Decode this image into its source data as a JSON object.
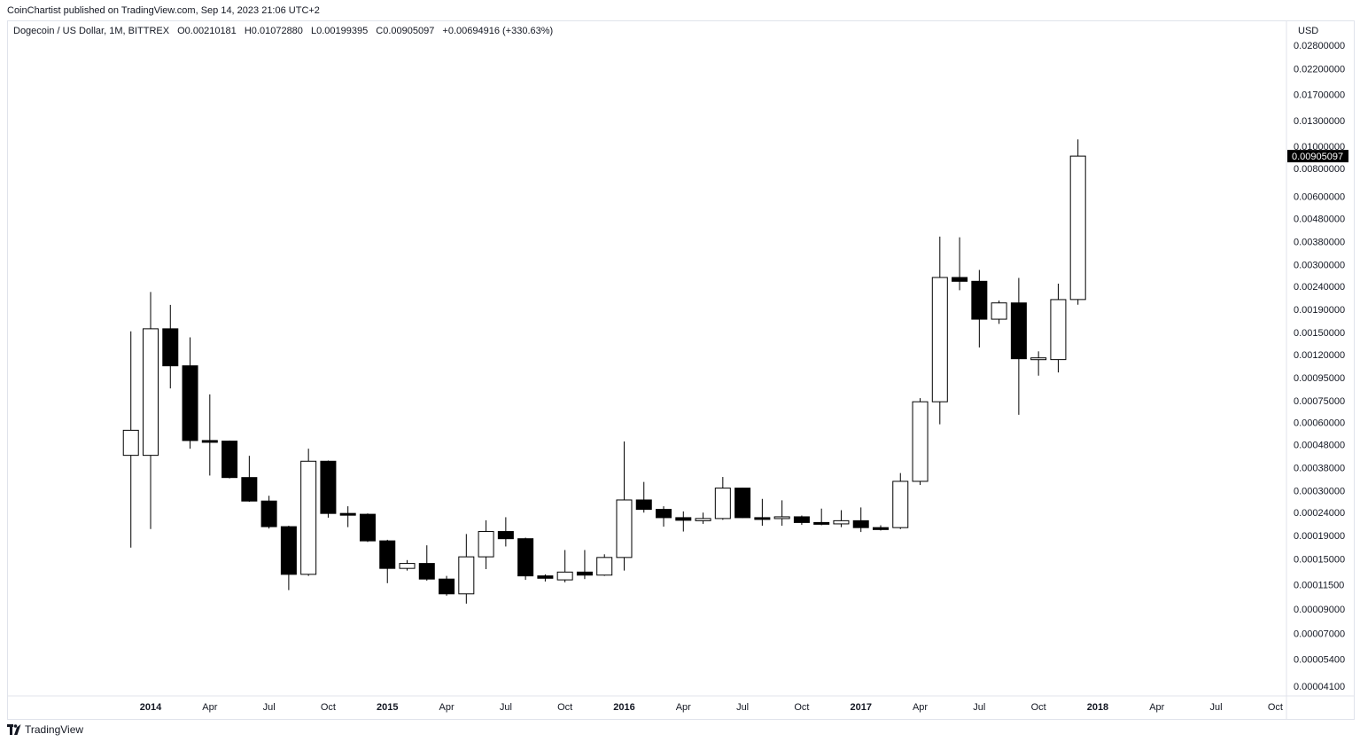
{
  "header": {
    "published": "CoinChartist published on TradingView.com, Sep 14, 2023 21:06 UTC+2"
  },
  "legend": {
    "symbol": "Dogecoin / US Dollar, 1M, BITTREX",
    "open": "O0.00210181",
    "high": "H0.01072880",
    "low": "L0.00199395",
    "close": "C0.00905097",
    "change": "+0.00694916 (+330.63%)"
  },
  "currency": "USD",
  "footer": {
    "brand": "TradingView",
    "logo_icon": "tradingview-logo-icon"
  },
  "colors": {
    "up_fill": "#ffffff",
    "down_fill": "#000000",
    "wick": "#000000",
    "last_price_bg": "#000000",
    "last_price_text": "#ffffff"
  },
  "chart_data": {
    "type": "candlestick",
    "scale": "log",
    "grid": false,
    "last_price_label": "0.00905097",
    "y_ticks": [
      "0.02800000",
      "0.02200000",
      "0.01700000",
      "0.01300000",
      "0.01000000",
      "0.00800000",
      "0.00600000",
      "0.00480000",
      "0.00380000",
      "0.00300000",
      "0.00240000",
      "0.00190000",
      "0.00150000",
      "0.00120000",
      "0.00095000",
      "0.00075000",
      "0.00060000",
      "0.00048000",
      "0.00038000",
      "0.00030000",
      "0.00024000",
      "0.00019000",
      "0.00015000",
      "0.00011500",
      "0.00009000",
      "0.00007000",
      "0.00005400",
      "0.00004100"
    ],
    "x_ticks": [
      {
        "label": "2014",
        "date": "2014-01",
        "bold": true
      },
      {
        "label": "Apr",
        "date": "2014-04",
        "bold": false
      },
      {
        "label": "Jul",
        "date": "2014-07",
        "bold": false
      },
      {
        "label": "Oct",
        "date": "2014-10",
        "bold": false
      },
      {
        "label": "2015",
        "date": "2015-01",
        "bold": true
      },
      {
        "label": "Apr",
        "date": "2015-04",
        "bold": false
      },
      {
        "label": "Jul",
        "date": "2015-07",
        "bold": false
      },
      {
        "label": "Oct",
        "date": "2015-10",
        "bold": false
      },
      {
        "label": "2016",
        "date": "2016-01",
        "bold": true
      },
      {
        "label": "Apr",
        "date": "2016-04",
        "bold": false
      },
      {
        "label": "Jul",
        "date": "2016-07",
        "bold": false
      },
      {
        "label": "Oct",
        "date": "2016-10",
        "bold": false
      },
      {
        "label": "2017",
        "date": "2017-01",
        "bold": true
      },
      {
        "label": "Apr",
        "date": "2017-04",
        "bold": false
      },
      {
        "label": "Jul",
        "date": "2017-07",
        "bold": false
      },
      {
        "label": "Oct",
        "date": "2017-10",
        "bold": false
      },
      {
        "label": "2018",
        "date": "2018-01",
        "bold": true
      },
      {
        "label": "Apr",
        "date": "2018-04",
        "bold": false
      },
      {
        "label": "Jul",
        "date": "2018-07",
        "bold": false
      },
      {
        "label": "Oct",
        "date": "2018-10",
        "bold": false
      }
    ],
    "candles": [
      {
        "date": "2013-12",
        "o": 0.00043,
        "h": 0.00152,
        "l": 0.000168,
        "c": 0.000555
      },
      {
        "date": "2014-01",
        "o": 0.00043,
        "h": 0.00227,
        "l": 0.000203,
        "c": 0.00156
      },
      {
        "date": "2014-02",
        "o": 0.00156,
        "h": 0.00199,
        "l": 0.00085,
        "c": 0.00107
      },
      {
        "date": "2014-03",
        "o": 0.00107,
        "h": 0.00143,
        "l": 0.00046,
        "c": 0.0005
      },
      {
        "date": "2014-04",
        "o": 0.0005,
        "h": 0.0008,
        "l": 0.00035,
        "c": 0.000497
      },
      {
        "date": "2014-05",
        "o": 0.000497,
        "h": 0.0005,
        "l": 0.00034,
        "c": 0.000343
      },
      {
        "date": "2014-06",
        "o": 0.000343,
        "h": 0.000428,
        "l": 0.000268,
        "c": 0.00027
      },
      {
        "date": "2014-07",
        "o": 0.00027,
        "h": 0.000285,
        "l": 0.000204,
        "c": 0.000208
      },
      {
        "date": "2014-08",
        "o": 0.000208,
        "h": 0.00021,
        "l": 0.000109,
        "c": 0.000128
      },
      {
        "date": "2014-09",
        "o": 0.000128,
        "h": 0.00046,
        "l": 0.000126,
        "c": 0.000405
      },
      {
        "date": "2014-10",
        "o": 0.000405,
        "h": 0.000408,
        "l": 0.000228,
        "c": 0.000238
      },
      {
        "date": "2014-11",
        "o": 0.000238,
        "h": 0.000256,
        "l": 0.000207,
        "c": 0.000236
      },
      {
        "date": "2014-12",
        "o": 0.000236,
        "h": 0.000238,
        "l": 0.000178,
        "c": 0.00018
      },
      {
        "date": "2015-01",
        "o": 0.00018,
        "h": 0.000182,
        "l": 0.000117,
        "c": 0.000136
      },
      {
        "date": "2015-02",
        "o": 0.000136,
        "h": 0.000148,
        "l": 0.000133,
        "c": 0.000143
      },
      {
        "date": "2015-03",
        "o": 0.000143,
        "h": 0.000172,
        "l": 0.00012,
        "c": 0.000122
      },
      {
        "date": "2015-04",
        "o": 0.000122,
        "h": 0.000126,
        "l": 0.000103,
        "c": 0.000105
      },
      {
        "date": "2015-05",
        "o": 0.000105,
        "h": 0.000193,
        "l": 9.5e-05,
        "c": 0.000153
      },
      {
        "date": "2015-06",
        "o": 0.000153,
        "h": 0.000222,
        "l": 0.000135,
        "c": 0.000198
      },
      {
        "date": "2015-07",
        "o": 0.000198,
        "h": 0.000229,
        "l": 0.00017,
        "c": 0.000184
      },
      {
        "date": "2015-08",
        "o": 0.000184,
        "h": 0.000186,
        "l": 0.000121,
        "c": 0.000126
      },
      {
        "date": "2015-09",
        "o": 0.000126,
        "h": 0.000128,
        "l": 0.000119,
        "c": 0.000123
      },
      {
        "date": "2015-10",
        "o": 0.000121,
        "h": 0.000164,
        "l": 0.000118,
        "c": 0.000131
      },
      {
        "date": "2015-11",
        "o": 0.000131,
        "h": 0.000164,
        "l": 0.000122,
        "c": 0.000127
      },
      {
        "date": "2015-12",
        "o": 0.000127,
        "h": 0.000157,
        "l": 0.000126,
        "c": 0.000152
      },
      {
        "date": "2016-01",
        "o": 0.000152,
        "h": 0.000495,
        "l": 0.000133,
        "c": 0.000273
      },
      {
        "date": "2016-02",
        "o": 0.000273,
        "h": 0.000328,
        "l": 0.00024,
        "c": 0.000248
      },
      {
        "date": "2016-03",
        "o": 0.000248,
        "h": 0.000256,
        "l": 0.000208,
        "c": 0.000228
      },
      {
        "date": "2016-04",
        "o": 0.000228,
        "h": 0.000243,
        "l": 0.000198,
        "c": 0.000222
      },
      {
        "date": "2016-05",
        "o": 0.000221,
        "h": 0.00024,
        "l": 0.000214,
        "c": 0.000226
      },
      {
        "date": "2016-06",
        "o": 0.000226,
        "h": 0.000345,
        "l": 0.000223,
        "c": 0.000308
      },
      {
        "date": "2016-07",
        "o": 0.000308,
        "h": 0.000309,
        "l": 0.000227,
        "c": 0.000228
      },
      {
        "date": "2016-08",
        "o": 0.000228,
        "h": 0.000276,
        "l": 0.00021,
        "c": 0.000227
      },
      {
        "date": "2016-09",
        "o": 0.000227,
        "h": 0.000272,
        "l": 0.00021,
        "c": 0.00023
      },
      {
        "date": "2016-10",
        "o": 0.00023,
        "h": 0.000233,
        "l": 0.000212,
        "c": 0.000217
      },
      {
        "date": "2016-11",
        "o": 0.000217,
        "h": 0.00025,
        "l": 0.000211,
        "c": 0.000214
      },
      {
        "date": "2016-12",
        "o": 0.000214,
        "h": 0.000246,
        "l": 0.000207,
        "c": 0.000221
      },
      {
        "date": "2017-01",
        "o": 0.000221,
        "h": 0.000253,
        "l": 0.000197,
        "c": 0.000206
      },
      {
        "date": "2017-02",
        "o": 0.000206,
        "h": 0.000211,
        "l": 0.0002,
        "c": 0.000202
      },
      {
        "date": "2017-03",
        "o": 0.000206,
        "h": 0.000359,
        "l": 0.000203,
        "c": 0.00033
      },
      {
        "date": "2017-04",
        "o": 0.00033,
        "h": 0.00077,
        "l": 0.000318,
        "c": 0.000742
      },
      {
        "date": "2017-05",
        "o": 0.000742,
        "h": 0.00399,
        "l": 0.00059,
        "c": 0.00263
      },
      {
        "date": "2017-06",
        "o": 0.00263,
        "h": 0.00396,
        "l": 0.00231,
        "c": 0.00253
      },
      {
        "date": "2017-07",
        "o": 0.00253,
        "h": 0.00284,
        "l": 0.00129,
        "c": 0.00172
      },
      {
        "date": "2017-08",
        "o": 0.00172,
        "h": 0.00208,
        "l": 0.00164,
        "c": 0.00203
      },
      {
        "date": "2017-09",
        "o": 0.00203,
        "h": 0.00262,
        "l": 0.00065,
        "c": 0.00115
      },
      {
        "date": "2017-10",
        "o": 0.00115,
        "h": 0.00124,
        "l": 0.000968,
        "c": 0.00116
      },
      {
        "date": "2017-11",
        "o": 0.00114,
        "h": 0.00247,
        "l": 0.001,
        "c": 0.0021
      },
      {
        "date": "2017-12",
        "o": 0.00210181,
        "h": 0.0107288,
        "l": 0.00199395,
        "c": 0.00905097
      }
    ]
  }
}
